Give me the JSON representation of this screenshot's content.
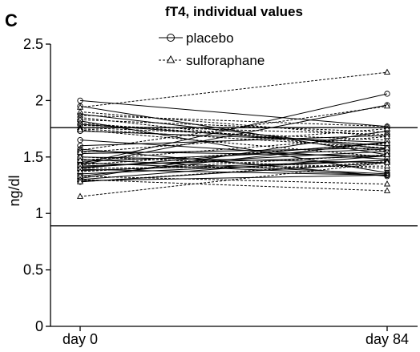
{
  "chart_data": {
    "type": "line",
    "panel_label": "C",
    "title": "fT4, individual values",
    "xlabel": "",
    "ylabel": "ng/dl",
    "categories": [
      "day 0",
      "day 84"
    ],
    "ylim": [
      0,
      2.5
    ],
    "yticks": [
      "0",
      "0.5",
      "1",
      "1.5",
      "2",
      "2.5"
    ],
    "reference_lines": [
      0.89,
      1.76
    ],
    "legend": {
      "position": "top-center",
      "entries": [
        "placebo",
        "sulforaphane"
      ]
    },
    "series": [
      {
        "name": "placebo",
        "marker": "circle",
        "line": "solid",
        "color": "#000000",
        "pairs": [
          [
            2.0,
            1.77
          ],
          [
            1.95,
            1.52
          ],
          [
            1.88,
            1.57
          ],
          [
            1.82,
            1.36
          ],
          [
            1.79,
            1.6
          ],
          [
            1.73,
            1.63
          ],
          [
            1.65,
            1.48
          ],
          [
            1.6,
            1.69
          ],
          [
            1.57,
            1.33
          ],
          [
            1.55,
            1.51
          ],
          [
            1.53,
            1.58
          ],
          [
            1.5,
            1.45
          ],
          [
            1.48,
            1.35
          ],
          [
            1.46,
            1.57
          ],
          [
            1.45,
            1.34
          ],
          [
            1.44,
            2.06
          ],
          [
            1.43,
            1.96
          ],
          [
            1.42,
            1.51
          ],
          [
            1.41,
            1.55
          ],
          [
            1.4,
            1.63
          ],
          [
            1.39,
            1.34
          ],
          [
            1.38,
            1.47
          ],
          [
            1.35,
            1.47
          ],
          [
            1.33,
            1.63
          ],
          [
            1.31,
            1.73
          ],
          [
            1.3,
            1.51
          ],
          [
            1.29,
            1.34
          ],
          [
            1.28,
            1.45
          ]
        ]
      },
      {
        "name": "sulforaphane",
        "marker": "triangle",
        "line": "dashed",
        "color": "#000000",
        "pairs": [
          [
            1.94,
            2.25
          ],
          [
            1.9,
            1.68
          ],
          [
            1.87,
            1.77
          ],
          [
            1.85,
            1.55
          ],
          [
            1.83,
            1.72
          ],
          [
            1.8,
            1.6
          ],
          [
            1.78,
            1.7
          ],
          [
            1.76,
            1.65
          ],
          [
            1.75,
            1.58
          ],
          [
            1.74,
            1.5
          ],
          [
            1.56,
            1.95
          ],
          [
            1.54,
            1.75
          ],
          [
            1.5,
            1.4
          ],
          [
            1.47,
            1.68
          ],
          [
            1.43,
            1.62
          ],
          [
            1.4,
            1.42
          ],
          [
            1.37,
            1.52
          ],
          [
            1.33,
            1.26
          ],
          [
            1.3,
            1.2
          ],
          [
            1.28,
            1.46
          ],
          [
            1.15,
            1.45
          ]
        ]
      }
    ]
  }
}
